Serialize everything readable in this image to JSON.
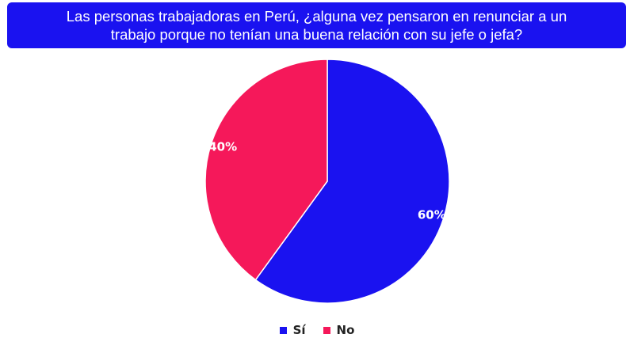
{
  "chart_data": {
    "type": "pie",
    "title": "Las personas trabajadoras en Perú, ¿alguna vez pensaron en renunciar a un trabajo porque no tenían una buena relación con su jefe o jefa?",
    "categories": [
      "Sí",
      "No"
    ],
    "values": [
      60,
      40
    ],
    "value_labels": [
      "60%",
      "40%"
    ],
    "colors": [
      "#1a12f0",
      "#f5185a"
    ],
    "legend_position": "bottom"
  },
  "colors": {
    "banner": "#1a12f0"
  }
}
